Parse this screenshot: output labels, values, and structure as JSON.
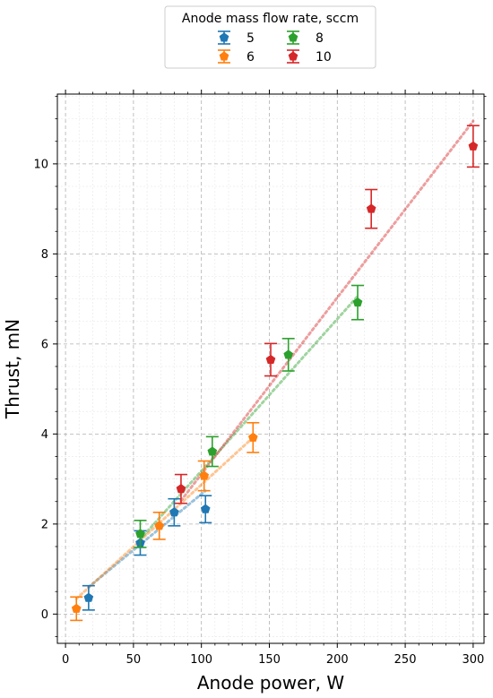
{
  "chart_data": {
    "type": "scatter",
    "xlabel": "Anode power, W",
    "ylabel": "Thrust, mN",
    "xlim": [
      -6,
      308
    ],
    "ylim": [
      -0.65,
      11.55
    ],
    "xticks": [
      "0",
      "50",
      "100",
      "150",
      "200",
      "250",
      "300"
    ],
    "yticks": [
      "0",
      "2",
      "4",
      "6",
      "8",
      "10"
    ],
    "grid": true,
    "legend": {
      "title": "Anode mass flow rate, sccm",
      "placement": "top-center"
    },
    "series": [
      {
        "name": "5",
        "color": "#1f77b4",
        "points": [
          {
            "x": 17,
            "y": 0.36,
            "err": 0.27
          },
          {
            "x": 55,
            "y": 1.58,
            "err": 0.27
          },
          {
            "x": 80,
            "y": 2.26,
            "err": 0.3
          },
          {
            "x": 103,
            "y": 2.33,
            "err": 0.3
          }
        ],
        "fit": [
          [
            17,
            0.6
          ],
          [
            103,
            2.74
          ]
        ]
      },
      {
        "name": "6",
        "color": "#ff7f0e",
        "points": [
          {
            "x": 8,
            "y": 0.12,
            "err": 0.26
          },
          {
            "x": 69,
            "y": 1.96,
            "err": 0.3
          },
          {
            "x": 102,
            "y": 3.07,
            "err": 0.33
          },
          {
            "x": 138,
            "y": 3.92,
            "err": 0.33
          }
        ],
        "fit": [
          [
            8,
            0.34
          ],
          [
            138,
            3.92
          ]
        ]
      },
      {
        "name": "8",
        "color": "#2ca02c",
        "points": [
          {
            "x": 55,
            "y": 1.78,
            "err": 0.3
          },
          {
            "x": 108,
            "y": 3.61,
            "err": 0.33
          },
          {
            "x": 164,
            "y": 5.76,
            "err": 0.36
          },
          {
            "x": 215,
            "y": 6.92,
            "err": 0.38
          }
        ],
        "fit": [
          [
            55,
            1.66
          ],
          [
            215,
            7.06
          ]
        ]
      },
      {
        "name": "10",
        "color": "#d62728",
        "points": [
          {
            "x": 85,
            "y": 2.78,
            "err": 0.32
          },
          {
            "x": 151,
            "y": 5.65,
            "err": 0.36
          },
          {
            "x": 225,
            "y": 9.0,
            "err": 0.43
          },
          {
            "x": 300,
            "y": 10.39,
            "err": 0.46
          }
        ],
        "fit": [
          [
            85,
            2.52
          ],
          [
            300,
            10.95
          ]
        ]
      }
    ]
  }
}
